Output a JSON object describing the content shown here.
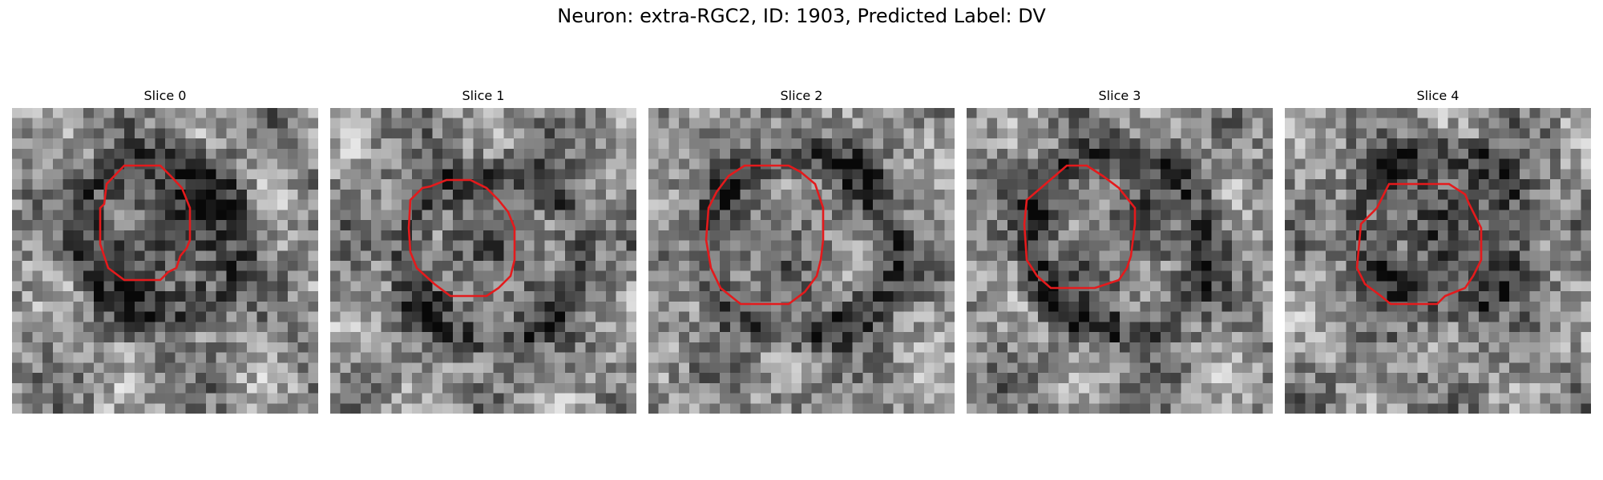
{
  "figure": {
    "title": "Neuron: extra-RGC2, ID: 1903, Predicted Label: DV",
    "contour_color": "#e41a1c",
    "colormap": "grayscale"
  },
  "slices": [
    {
      "title": "Slice 0"
    },
    {
      "title": "Slice 1"
    },
    {
      "title": "Slice 2"
    },
    {
      "title": "Slice 3"
    },
    {
      "title": "Slice 4"
    }
  ]
}
